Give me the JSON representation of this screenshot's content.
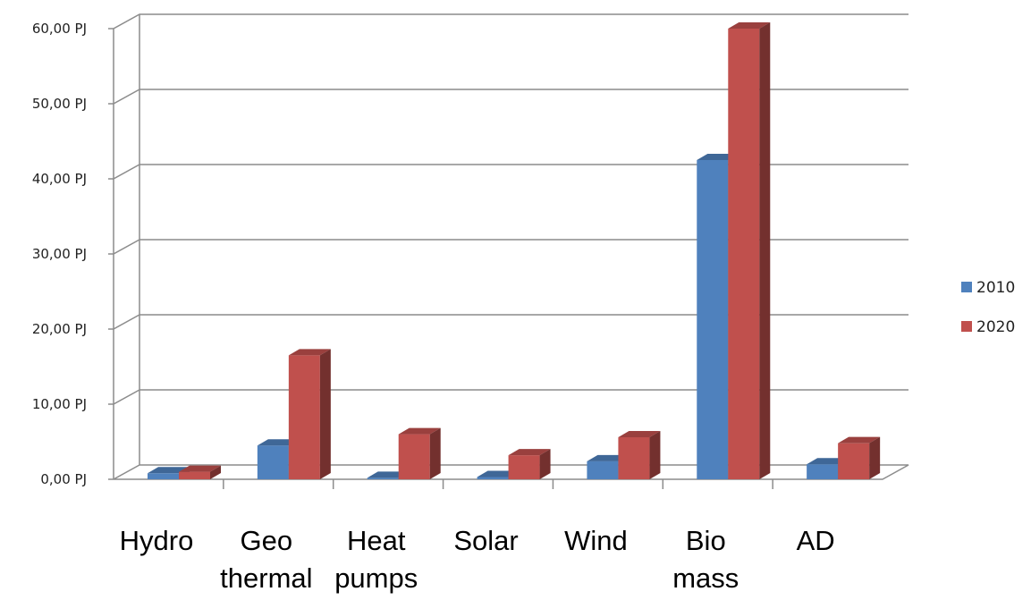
{
  "chart_data": {
    "type": "bar",
    "style": "3d-clustered-column",
    "categories": [
      [
        "Hydro"
      ],
      [
        "Geo",
        "thermal"
      ],
      [
        "Heat",
        "pumps"
      ],
      [
        "Solar"
      ],
      [
        "Wind"
      ],
      [
        "Bio",
        "mass"
      ],
      [
        "AD"
      ]
    ],
    "series": [
      {
        "name": "2010",
        "color": "#4F81BD",
        "values": [
          0.8,
          4.5,
          0.2,
          0.3,
          2.4,
          42.5,
          2.0
        ]
      },
      {
        "name": "2020",
        "color": "#C0504D",
        "values": [
          1.0,
          16.5,
          6.0,
          3.2,
          5.6,
          60.0,
          4.8
        ]
      }
    ],
    "yticks": [
      "0,00 PJ",
      "10,00 PJ",
      "20,00 PJ",
      "30,00 PJ",
      "40,00 PJ",
      "50,00 PJ",
      "60,00 PJ"
    ],
    "ylim": [
      0,
      60
    ],
    "grid": true,
    "legend": "right"
  }
}
